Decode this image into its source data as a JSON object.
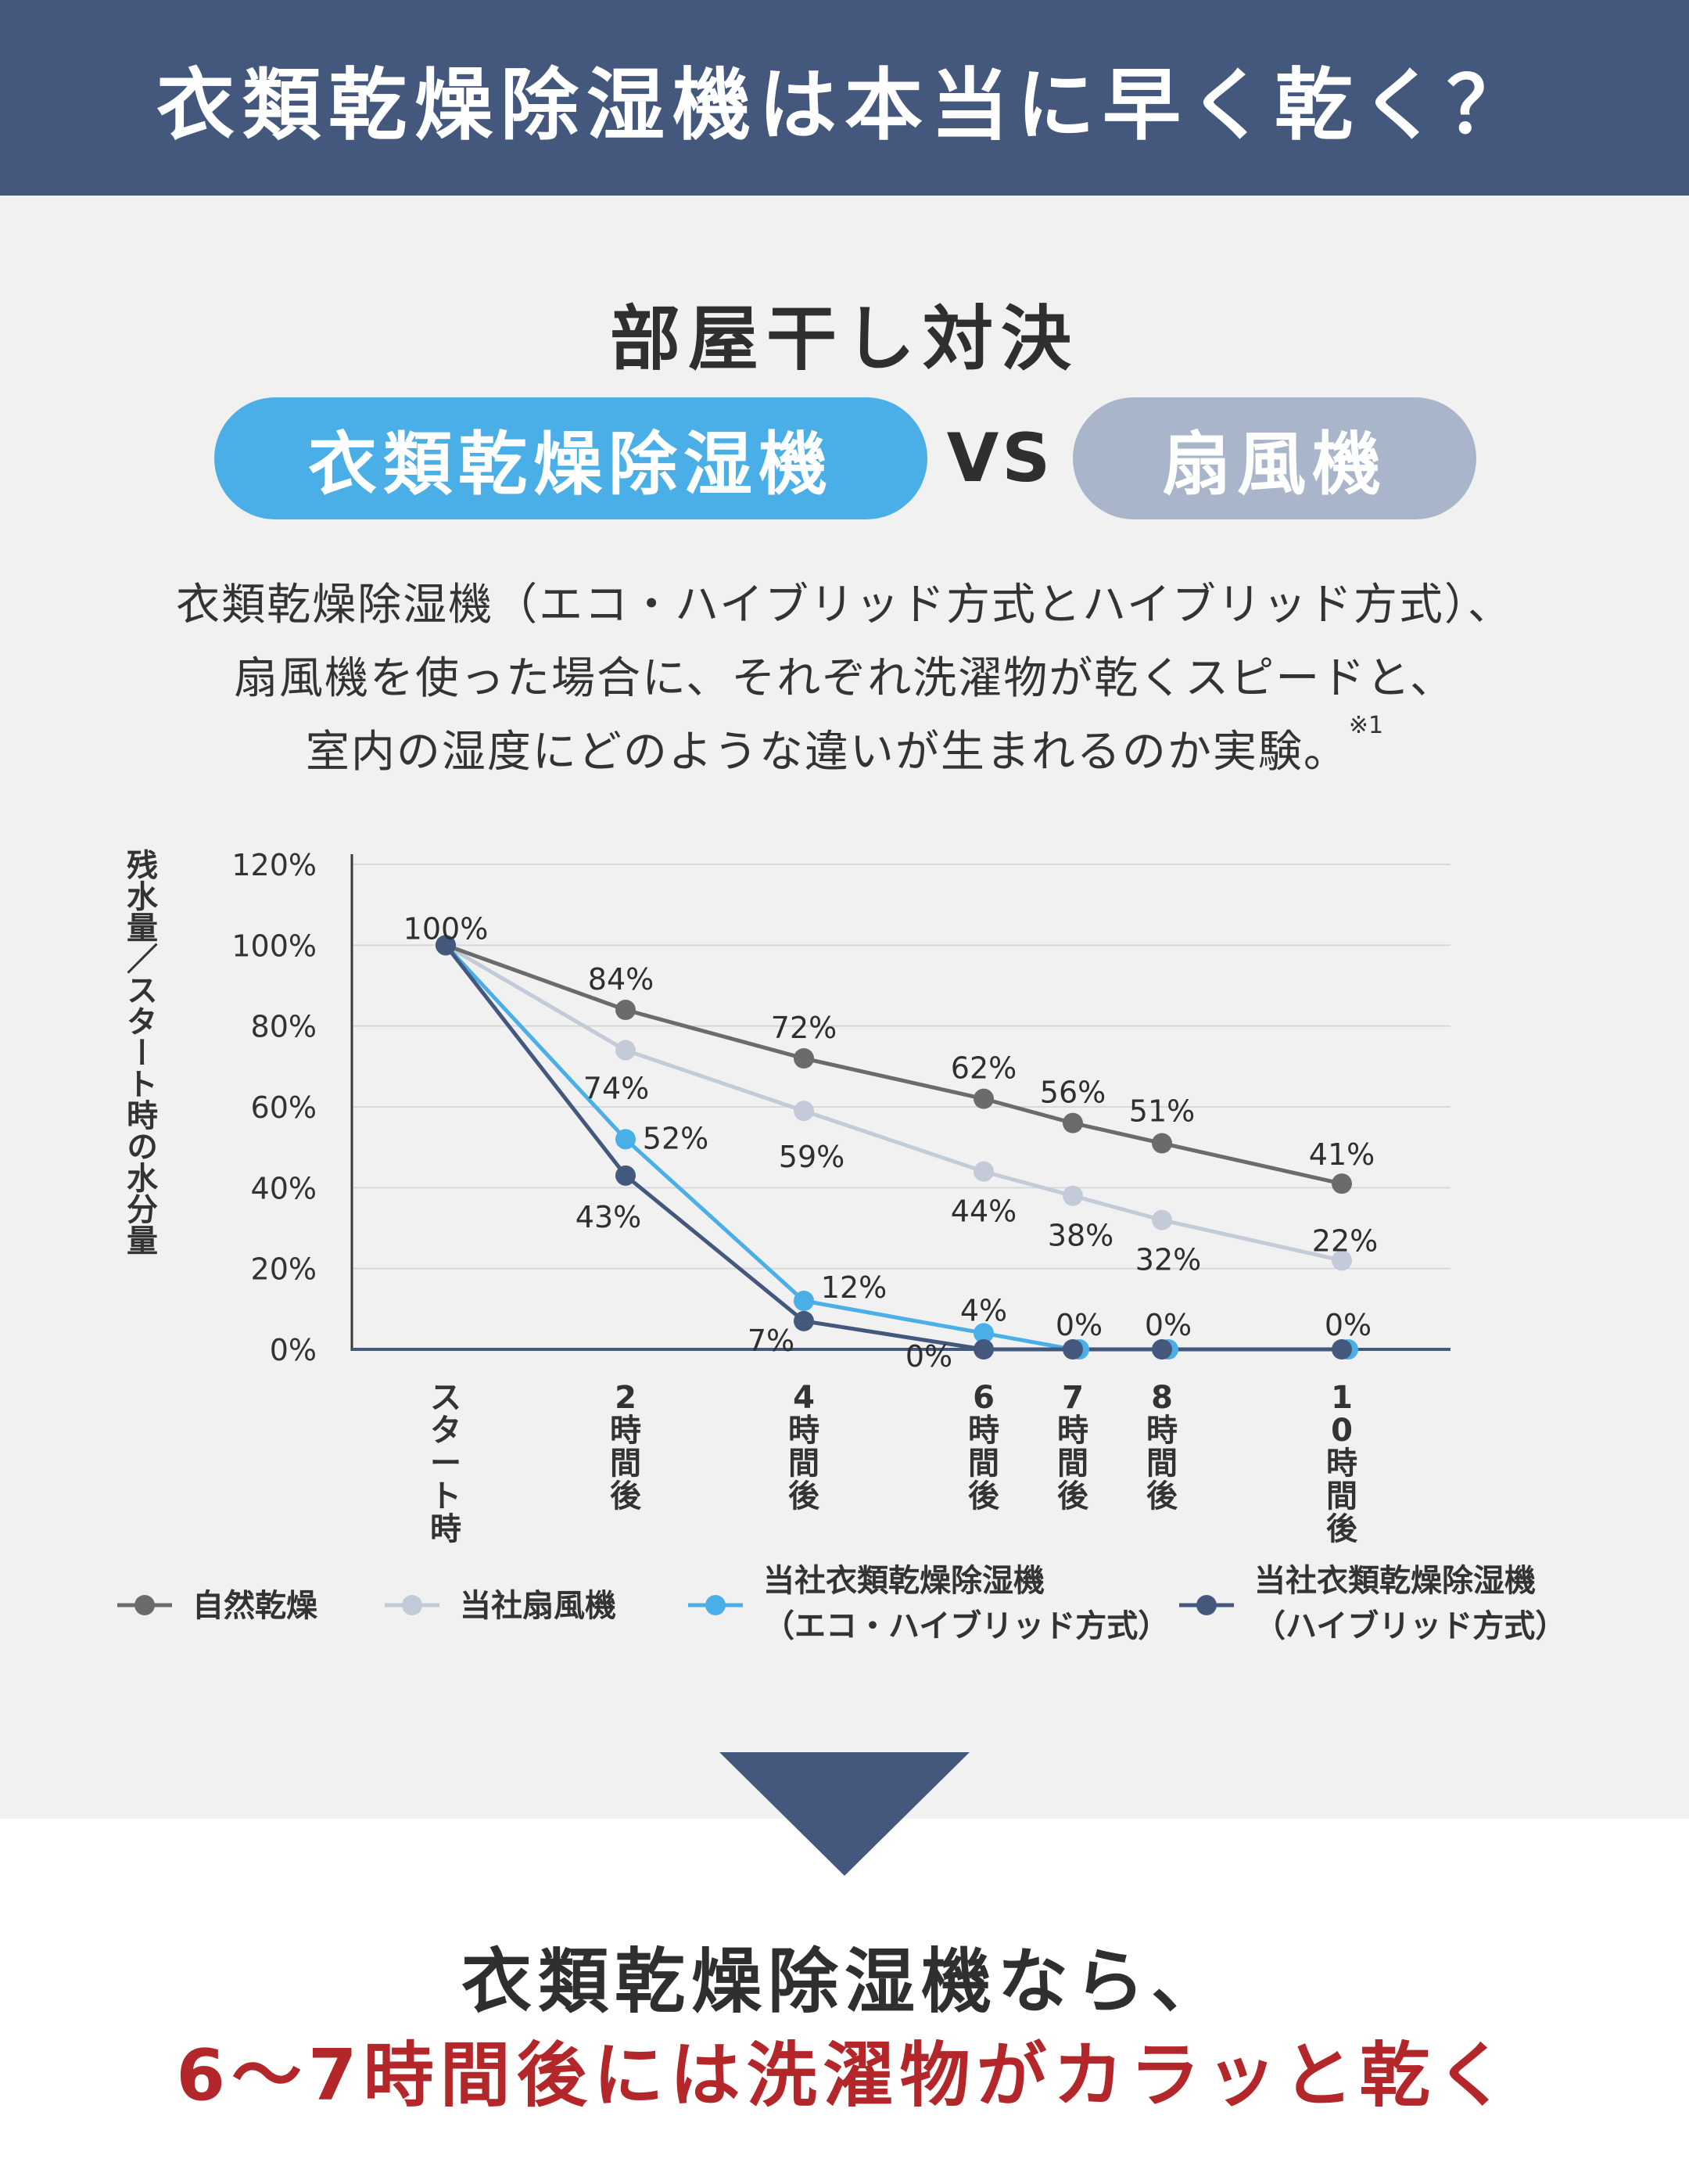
{
  "header": {
    "title": "衣類乾燥除湿機は本当に早く乾く？"
  },
  "subtitle": "部屋干し対決",
  "versus": {
    "left": "衣類乾燥除湿機",
    "middle": "VS",
    "right": "扇風機"
  },
  "description": {
    "line1": "衣類乾燥除湿機（エコ・ハイブリッド方式とハイブリッド方式）、",
    "line2": "扇風機を使った場合に、それぞれ洗濯物が乾くスピードと、",
    "line3": "室内の湿度にどのような違いが生まれるのか実験。",
    "note": "※1"
  },
  "colors": {
    "header_bg": "#44587e",
    "accent_blue": "#4aaee7",
    "accent_gray": "#a8b5ca",
    "highlight_red": "#b3262a"
  },
  "chart_data": {
    "type": "line",
    "ylabel": "残水量／スタート時の水分量",
    "yticks": [
      "0%",
      "20%",
      "40%",
      "60%",
      "80%",
      "100%",
      "120%"
    ],
    "ylim": [
      0,
      120
    ],
    "grid": true,
    "x": [
      0,
      2,
      4,
      6,
      7,
      8,
      10
    ],
    "x_tick_labels": [
      "スタート時",
      "2時間後",
      "4時間後",
      "6時間後",
      "7時間後",
      "8時間後",
      "10時間後"
    ],
    "legend_position": "bottom",
    "series": [
      {
        "name": "自然乾燥",
        "color": "#6b6b6b",
        "values": [
          100,
          84,
          72,
          62,
          56,
          51,
          41
        ],
        "data_labels": [
          "100%",
          "84%",
          "72%",
          "62%",
          "56%",
          "51%",
          "41%"
        ]
      },
      {
        "name": "当社扇風機",
        "color": "#c3cbd8",
        "values": [
          100,
          74,
          59,
          44,
          38,
          32,
          22
        ],
        "data_labels": [
          "",
          "74%",
          "59%",
          "44%",
          "38%",
          "32%",
          "22%"
        ]
      },
      {
        "name": "当社衣類乾燥除湿機（エコ・ハイブリッド方式）",
        "legend_lines": [
          "当社衣類乾燥除湿機",
          "（エコ・ハイブリッド方式）"
        ],
        "color": "#4aaee7",
        "values": [
          100,
          52,
          12,
          4,
          0,
          0,
          0
        ],
        "data_labels": [
          "",
          "52%",
          "12%",
          "4%",
          "0%",
          "0%",
          "0%"
        ]
      },
      {
        "name": "当社衣類乾燥除湿機（ハイブリッド方式）",
        "legend_lines": [
          "当社衣類乾燥除湿機",
          "（ハイブリッド方式）"
        ],
        "color": "#44587e",
        "values": [
          100,
          43,
          7,
          0,
          0,
          0,
          0
        ],
        "data_labels": [
          "",
          "43%",
          "7%",
          "0%",
          "",
          "",
          ""
        ]
      }
    ]
  },
  "conclusion": {
    "line1": "衣類乾燥除湿機なら、",
    "line2": "6～7時間後には洗濯物がカラッと乾く"
  }
}
